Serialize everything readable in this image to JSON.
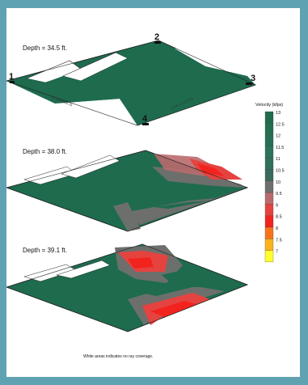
{
  "panel": {
    "depths": [
      "Depth = 34.5 ft.",
      "Depth = 38.0 ft.",
      "Depth = 39.1 ft."
    ],
    "markers": [
      "1",
      "2",
      "3",
      "4"
    ],
    "footnote": "White areas indicates no ray coverage."
  },
  "legend": {
    "title": "Velocity (kfps)",
    "levels": [
      "13",
      "12.5",
      "12",
      "11.5",
      "11",
      "10.5",
      "10",
      "9.5",
      "9",
      "8.5",
      "8",
      "7.5",
      "7"
    ],
    "colors": [
      "#1e6b4e",
      "#22704f",
      "#266f55",
      "#2b735a",
      "#30705d",
      "#3a6a5d",
      "#6c6f6c",
      "#b96a6d",
      "#e5433f",
      "#f2231e",
      "#f7741c",
      "#fbb31a",
      "#ffff2a"
    ]
  },
  "colors": {
    "frame": "#5fa2b1",
    "panel": "#ffffff",
    "high_velocity": "#1e6b4e",
    "mid_velocity": "#6c6f6c",
    "low_velocity": "#e5433f"
  }
}
